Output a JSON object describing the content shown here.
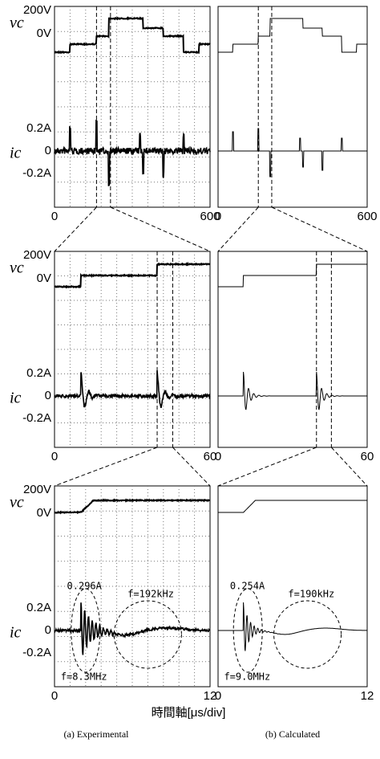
{
  "rows": [
    {
      "vc_label": "vc",
      "ic_label": "ic",
      "v_ticks": [
        "200V",
        "0V"
      ],
      "i_ticks": [
        "0.2A",
        "0",
        "-0.2A"
      ],
      "x_ticks_a": [
        "0",
        "600"
      ],
      "x_ticks_b": [
        "0",
        "600"
      ]
    },
    {
      "vc_label": "vc",
      "ic_label": "ic",
      "v_ticks": [
        "200V",
        "0V"
      ],
      "i_ticks": [
        "0.2A",
        "0",
        "-0.2A"
      ],
      "x_ticks_a": [
        "0",
        "60"
      ],
      "x_ticks_b": [
        "0",
        "60"
      ]
    },
    {
      "vc_label": "vc",
      "ic_label": "ic",
      "v_ticks": [
        "200V",
        "0V"
      ],
      "i_ticks": [
        "0.2A",
        "0",
        "-0.2A"
      ],
      "x_ticks_a": [
        "0",
        "12"
      ],
      "x_ticks_b": [
        "0",
        "12"
      ]
    }
  ],
  "annotations": {
    "a": {
      "peak": "0.296A",
      "low_freq": "f=192kHz",
      "high_freq": "f=8.3MHz"
    },
    "b": {
      "peak": "0.254A",
      "low_freq": "f=190kHz",
      "high_freq": "f=9.0MHz"
    }
  },
  "x_axis_label": "時間軸[μs/div]",
  "captions": [
    "(a) Experimental",
    "(b) Calculated"
  ]
}
